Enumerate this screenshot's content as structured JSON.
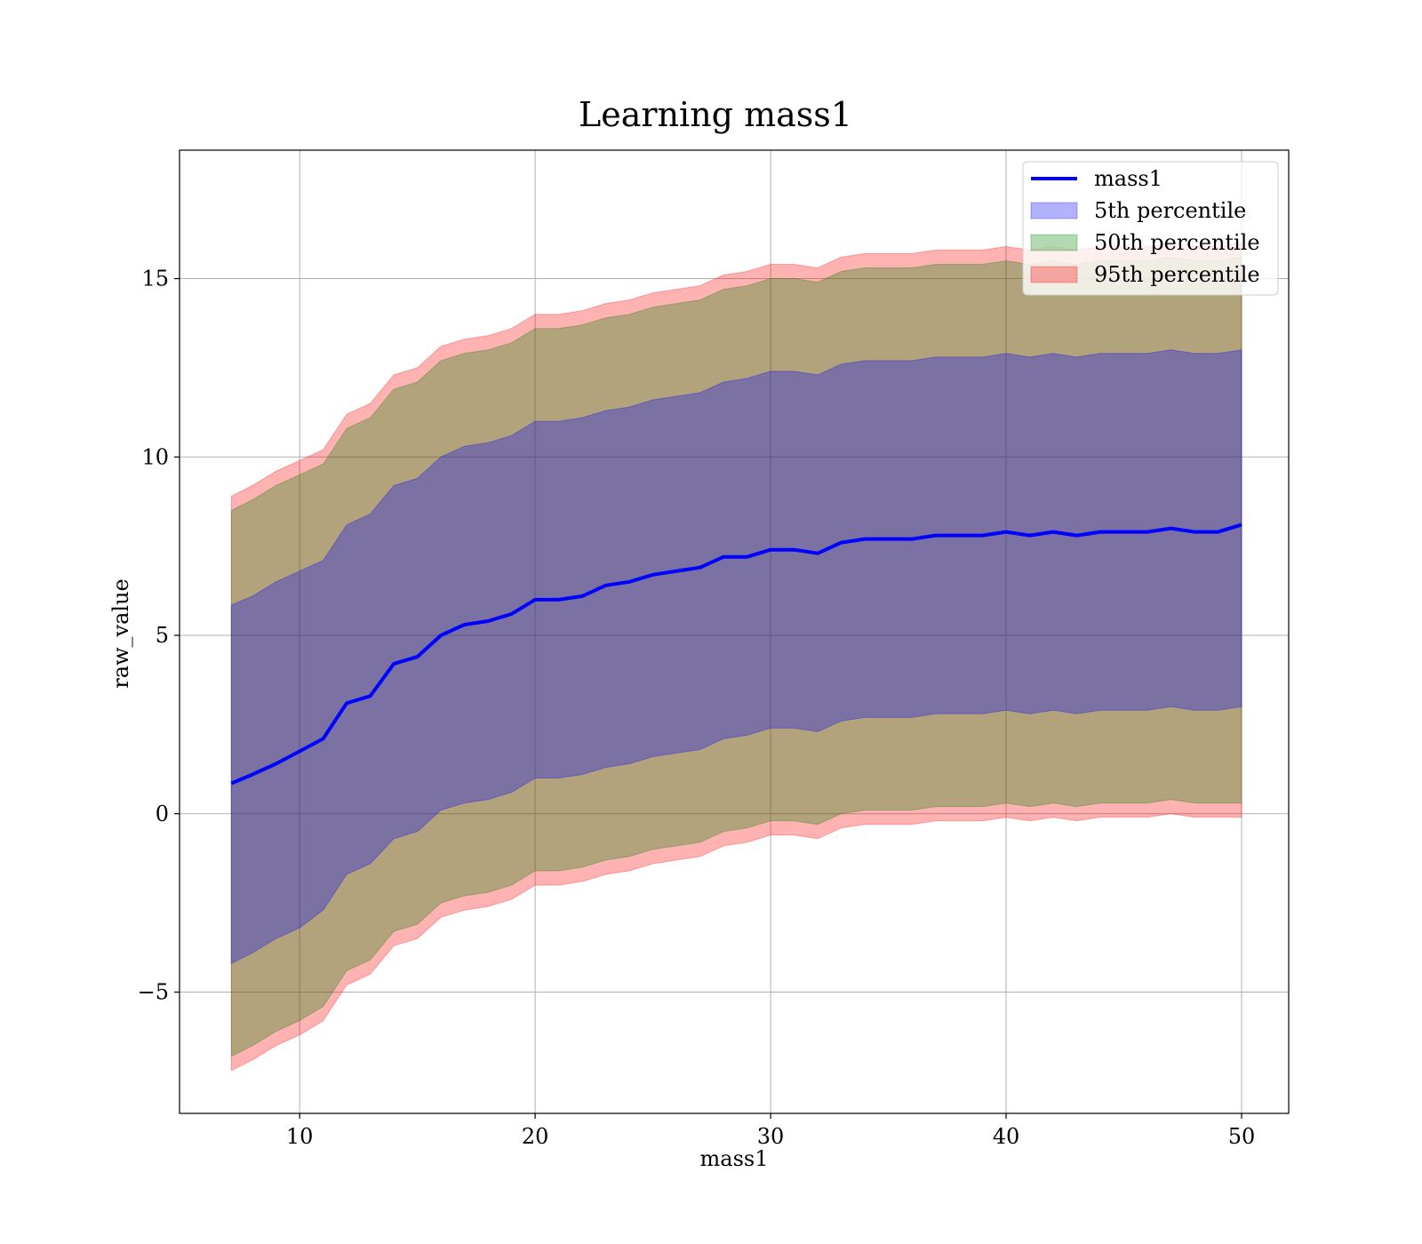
{
  "chart_data": {
    "type": "area",
    "title": "Learning mass1",
    "xlabel": "mass1",
    "ylabel": "raw_value",
    "xlim": [
      4.9,
      52.0
    ],
    "ylim": [
      -8.4,
      18.6
    ],
    "xticks": [
      10,
      20,
      30,
      40,
      50
    ],
    "xtick_labels": [
      "10",
      "20",
      "30",
      "40",
      "50"
    ],
    "yticks": [
      -5,
      0,
      5,
      10,
      15
    ],
    "ytick_labels": [
      "−5",
      "0",
      "5",
      "10",
      "15"
    ],
    "grid": true,
    "legend_position": "top-right",
    "x": [
      7.1,
      8,
      9,
      10,
      11,
      12,
      13,
      14,
      15,
      16,
      17,
      18,
      19,
      20,
      21,
      22,
      23,
      24,
      25,
      26,
      27,
      28,
      29,
      30,
      31,
      32,
      33,
      34,
      35,
      36,
      37,
      38,
      39,
      40,
      41,
      42,
      43,
      44,
      45,
      46,
      47,
      48,
      49,
      50
    ],
    "line": {
      "name": "mass1",
      "color": "#0000ff",
      "values": [
        0.85,
        1.1,
        1.4,
        1.75,
        2.1,
        3.1,
        3.3,
        4.2,
        4.4,
        5.0,
        5.3,
        5.4,
        5.6,
        6.0,
        6.0,
        6.1,
        6.4,
        6.5,
        6.7,
        6.8,
        6.9,
        7.2,
        7.2,
        7.4,
        7.4,
        7.3,
        7.6,
        7.7,
        7.7,
        7.7,
        7.8,
        7.8,
        7.8,
        7.9,
        7.8,
        7.9,
        7.8,
        7.9,
        7.9,
        7.9,
        8.0,
        7.9,
        7.9,
        8.1
      ]
    },
    "bands": [
      {
        "name": "5th percentile",
        "color": "#0000ff",
        "lower": [
          -4.2,
          -3.9,
          -3.5,
          -3.2,
          -2.7,
          -1.7,
          -1.4,
          -0.7,
          -0.5,
          0.1,
          0.3,
          0.4,
          0.6,
          1.0,
          1.0,
          1.1,
          1.3,
          1.4,
          1.6,
          1.7,
          1.8,
          2.1,
          2.2,
          2.4,
          2.4,
          2.3,
          2.6,
          2.7,
          2.7,
          2.7,
          2.8,
          2.8,
          2.8,
          2.9,
          2.8,
          2.9,
          2.8,
          2.9,
          2.9,
          2.9,
          3.0,
          2.9,
          2.9,
          3.0
        ],
        "upper": [
          5.85,
          6.1,
          6.5,
          6.8,
          7.1,
          8.1,
          8.4,
          9.2,
          9.4,
          10.0,
          10.3,
          10.4,
          10.6,
          11.0,
          11.0,
          11.1,
          11.3,
          11.4,
          11.6,
          11.7,
          11.8,
          12.1,
          12.2,
          12.4,
          12.4,
          12.3,
          12.6,
          12.7,
          12.7,
          12.7,
          12.8,
          12.8,
          12.8,
          12.9,
          12.8,
          12.9,
          12.8,
          12.9,
          12.9,
          12.9,
          13.0,
          12.9,
          12.9,
          13.0
        ]
      },
      {
        "name": "50th percentile",
        "color": "#008000",
        "lower": [
          -6.8,
          -6.5,
          -6.1,
          -5.8,
          -5.4,
          -4.4,
          -4.1,
          -3.3,
          -3.1,
          -2.5,
          -2.3,
          -2.2,
          -2.0,
          -1.6,
          -1.6,
          -1.5,
          -1.3,
          -1.2,
          -1.0,
          -0.9,
          -0.8,
          -0.5,
          -0.4,
          -0.2,
          -0.2,
          -0.3,
          0.0,
          0.1,
          0.1,
          0.1,
          0.2,
          0.2,
          0.2,
          0.3,
          0.2,
          0.3,
          0.2,
          0.3,
          0.3,
          0.3,
          0.4,
          0.3,
          0.3,
          0.3
        ],
        "upper": [
          8.5,
          8.8,
          9.2,
          9.5,
          9.8,
          10.8,
          11.1,
          11.9,
          12.1,
          12.7,
          12.9,
          13.0,
          13.2,
          13.6,
          13.6,
          13.7,
          13.9,
          14.0,
          14.2,
          14.3,
          14.4,
          14.7,
          14.8,
          15.0,
          15.0,
          14.9,
          15.2,
          15.3,
          15.3,
          15.3,
          15.4,
          15.4,
          15.4,
          15.5,
          15.4,
          15.5,
          15.4,
          15.5,
          15.5,
          15.5,
          15.6,
          15.5,
          15.5,
          15.6
        ]
      },
      {
        "name": "95th percentile",
        "color": "#ff0000",
        "lower": [
          -7.2,
          -6.9,
          -6.5,
          -6.2,
          -5.8,
          -4.8,
          -4.5,
          -3.7,
          -3.5,
          -2.9,
          -2.7,
          -2.6,
          -2.4,
          -2.0,
          -2.0,
          -1.9,
          -1.7,
          -1.6,
          -1.4,
          -1.3,
          -1.2,
          -0.9,
          -0.8,
          -0.6,
          -0.6,
          -0.7,
          -0.4,
          -0.3,
          -0.3,
          -0.3,
          -0.2,
          -0.2,
          -0.2,
          -0.1,
          -0.2,
          -0.1,
          -0.2,
          -0.1,
          -0.1,
          -0.1,
          0.0,
          -0.1,
          -0.1,
          -0.1
        ],
        "upper": [
          8.9,
          9.2,
          9.6,
          9.9,
          10.2,
          11.2,
          11.5,
          12.3,
          12.5,
          13.1,
          13.3,
          13.4,
          13.6,
          14.0,
          14.0,
          14.1,
          14.3,
          14.4,
          14.6,
          14.7,
          14.8,
          15.1,
          15.2,
          15.4,
          15.4,
          15.3,
          15.6,
          15.7,
          15.7,
          15.7,
          15.8,
          15.8,
          15.8,
          15.9,
          15.8,
          15.9,
          15.8,
          15.9,
          15.9,
          15.9,
          16.0,
          15.9,
          15.9,
          16.0
        ]
      }
    ],
    "legend": [
      "mass1",
      "5th percentile",
      "50th percentile",
      "95th percentile"
    ]
  }
}
